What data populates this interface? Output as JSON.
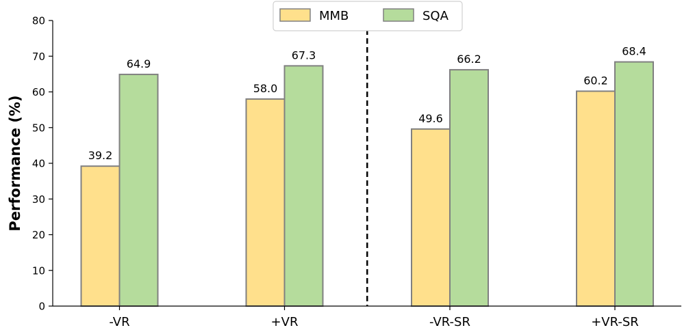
{
  "chart_data": {
    "type": "bar",
    "title": "",
    "xlabel": "",
    "ylabel": "Performance (%)",
    "ylim": [
      0,
      80
    ],
    "yticks": [
      0,
      10,
      20,
      30,
      40,
      50,
      60,
      70,
      80
    ],
    "categories": [
      "-VR",
      "+VR",
      "-VR-SR",
      "+VR-SR"
    ],
    "series": [
      {
        "name": "MMB",
        "values": [
          39.2,
          58.0,
          49.6,
          60.2
        ],
        "labels": [
          "39.2",
          "58.0",
          "49.6",
          "60.2"
        ],
        "color": "#FFE08C"
      },
      {
        "name": "SQA",
        "values": [
          64.9,
          67.3,
          66.2,
          68.4
        ],
        "labels": [
          "64.9",
          "67.3",
          "66.2",
          "68.4"
        ],
        "color": "#B5DC9C"
      }
    ],
    "bar_edge_color": "#808080",
    "divider": {
      "style": "dashed",
      "between_categories": [
        1,
        2
      ]
    },
    "legend": {
      "placement": "top-center",
      "orientation": "horizontal"
    },
    "grid": false
  }
}
